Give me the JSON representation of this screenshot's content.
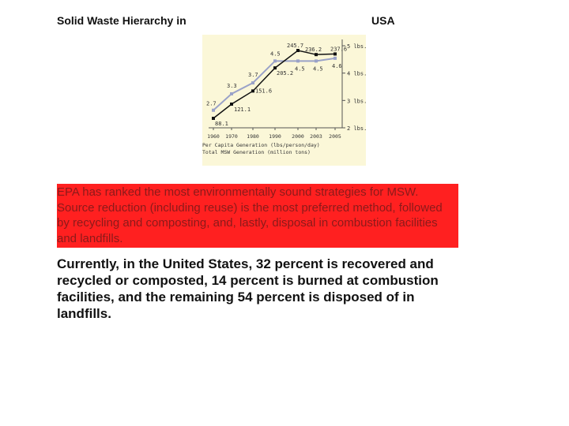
{
  "slide": {
    "title_left": "Solid Waste Hierarchy in",
    "title_right": "USA",
    "paragraph_red": "EPA has ranked the most environmentally sound strategies for MSW. Source reduction (including reuse) is the most preferred method, followed by recycling and composting, and, lastly, disposal in combustion facilities and landfills.",
    "paragraph_bold": "Currently, in the United States, 32 percent is recovered and recycled or composted, 14 percent is burned at combustion facilities, and the remaining 54 percent is disposed of in landfills."
  },
  "chart_data": {
    "type": "line",
    "x": [
      1960,
      1970,
      1980,
      1990,
      2000,
      2003,
      2005
    ],
    "x_tick_labels": [
      "1960",
      "1970",
      "1980",
      "1990",
      "2000",
      "2003",
      "2005"
    ],
    "right_axis_labels": [
      "5 lbs.",
      "4 lbs.",
      "3 lbs.",
      "2 lbs."
    ],
    "right_axis_values": [
      5,
      4,
      3,
      2
    ],
    "series": [
      {
        "name": "Total MSW Generation (million tons)",
        "values": [
          88.1,
          121.1,
          151.6,
          205.2,
          245.7,
          236.2,
          237.6
        ],
        "labels": [
          "88.1",
          "121.1",
          "151.6",
          "205.2",
          "245.7",
          "236.2",
          "237.6"
        ],
        "color": "#111111"
      },
      {
        "name": "Per Capita Generation (lbs/person/day)",
        "values": [
          2.7,
          3.3,
          3.7,
          4.5,
          4.5,
          4.5,
          4.6
        ],
        "labels": [
          "2.7",
          "3.3",
          "3.7",
          "4.5",
          "4.5",
          "4.5",
          "4.6"
        ],
        "color": "#9aa2c8"
      }
    ],
    "legend": [
      "Per Capita Generation (lbs/person/day)",
      "Total MSW Generation (million tons)"
    ],
    "background": "#fbf7d8"
  }
}
